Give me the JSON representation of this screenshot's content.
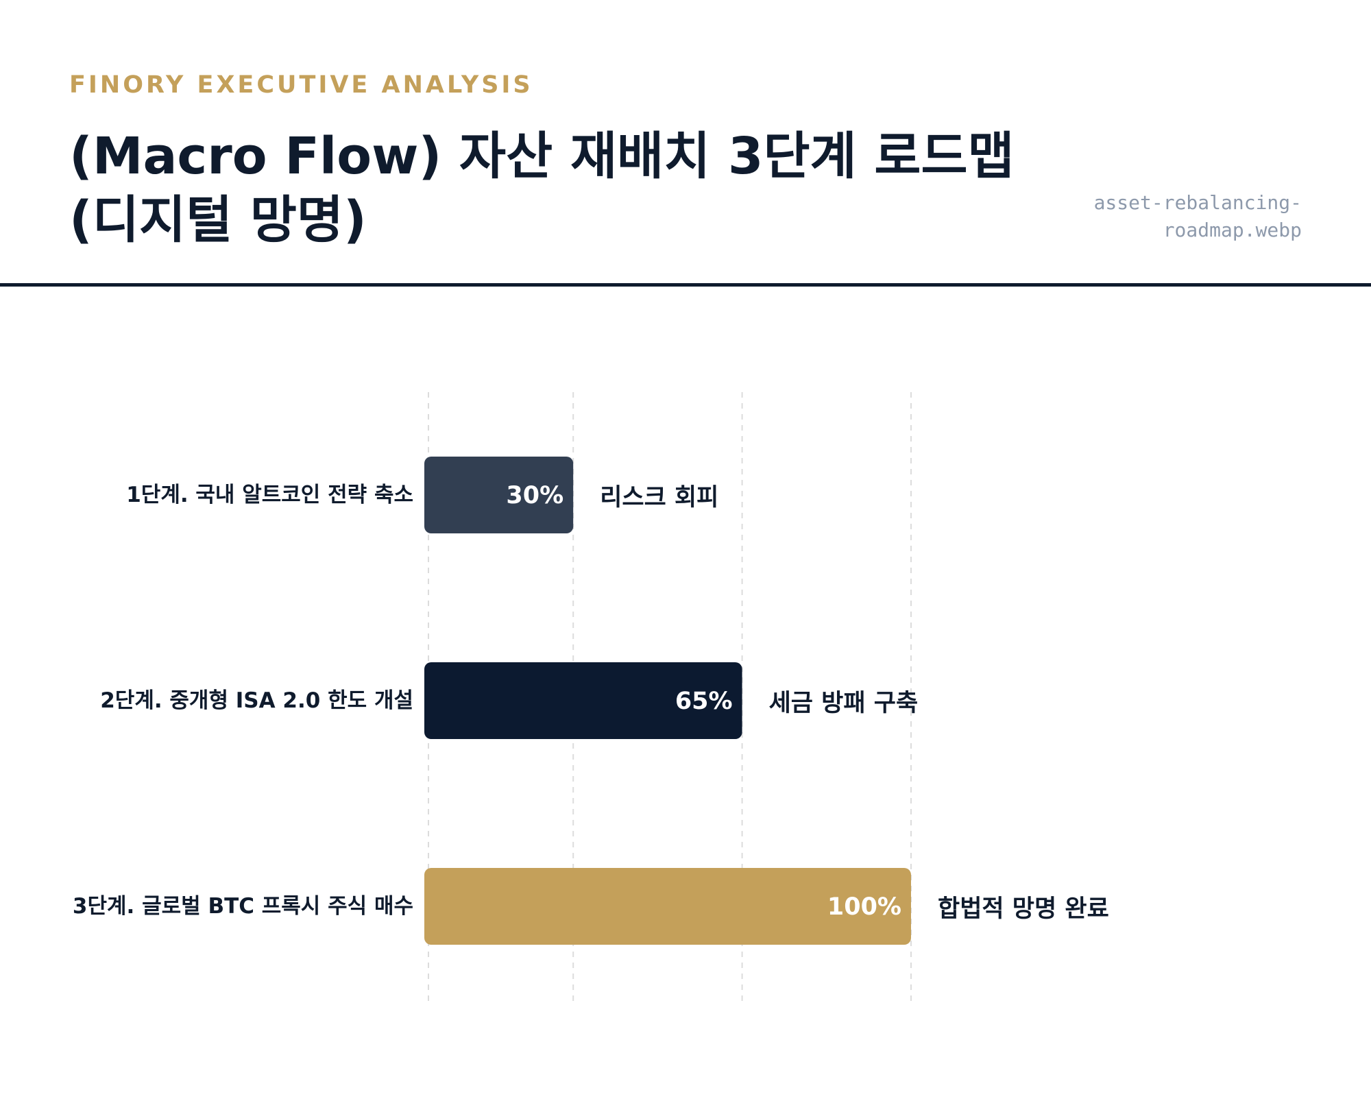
{
  "header": {
    "eyebrow": "FINORY EXECUTIVE ANALYSIS",
    "title": "(Macro Flow) 자산 재배치 3단계 로드맵 (디지털 망명)",
    "filename": "asset-rebalancing-roadmap.webp"
  },
  "chart_data": {
    "type": "bar",
    "orientation": "horizontal",
    "categories": [
      "1단계. 국내 알트코인 전략 축소",
      "2단계. 중개형 ISA 2.0 한도 개설",
      "3단계. 글로벌 BTC 프록시 주식 매수"
    ],
    "values": [
      30,
      65,
      100
    ],
    "value_labels": [
      "30%",
      "65%",
      "100%"
    ],
    "annotations": [
      "리스크 회피",
      "세금 방패 구축",
      "합법적 망명 완료"
    ],
    "colors": [
      "#323f52",
      "#0c1a30",
      "#c4a05a"
    ],
    "xlim": [
      0,
      110
    ],
    "grid": true,
    "legend": "none"
  }
}
